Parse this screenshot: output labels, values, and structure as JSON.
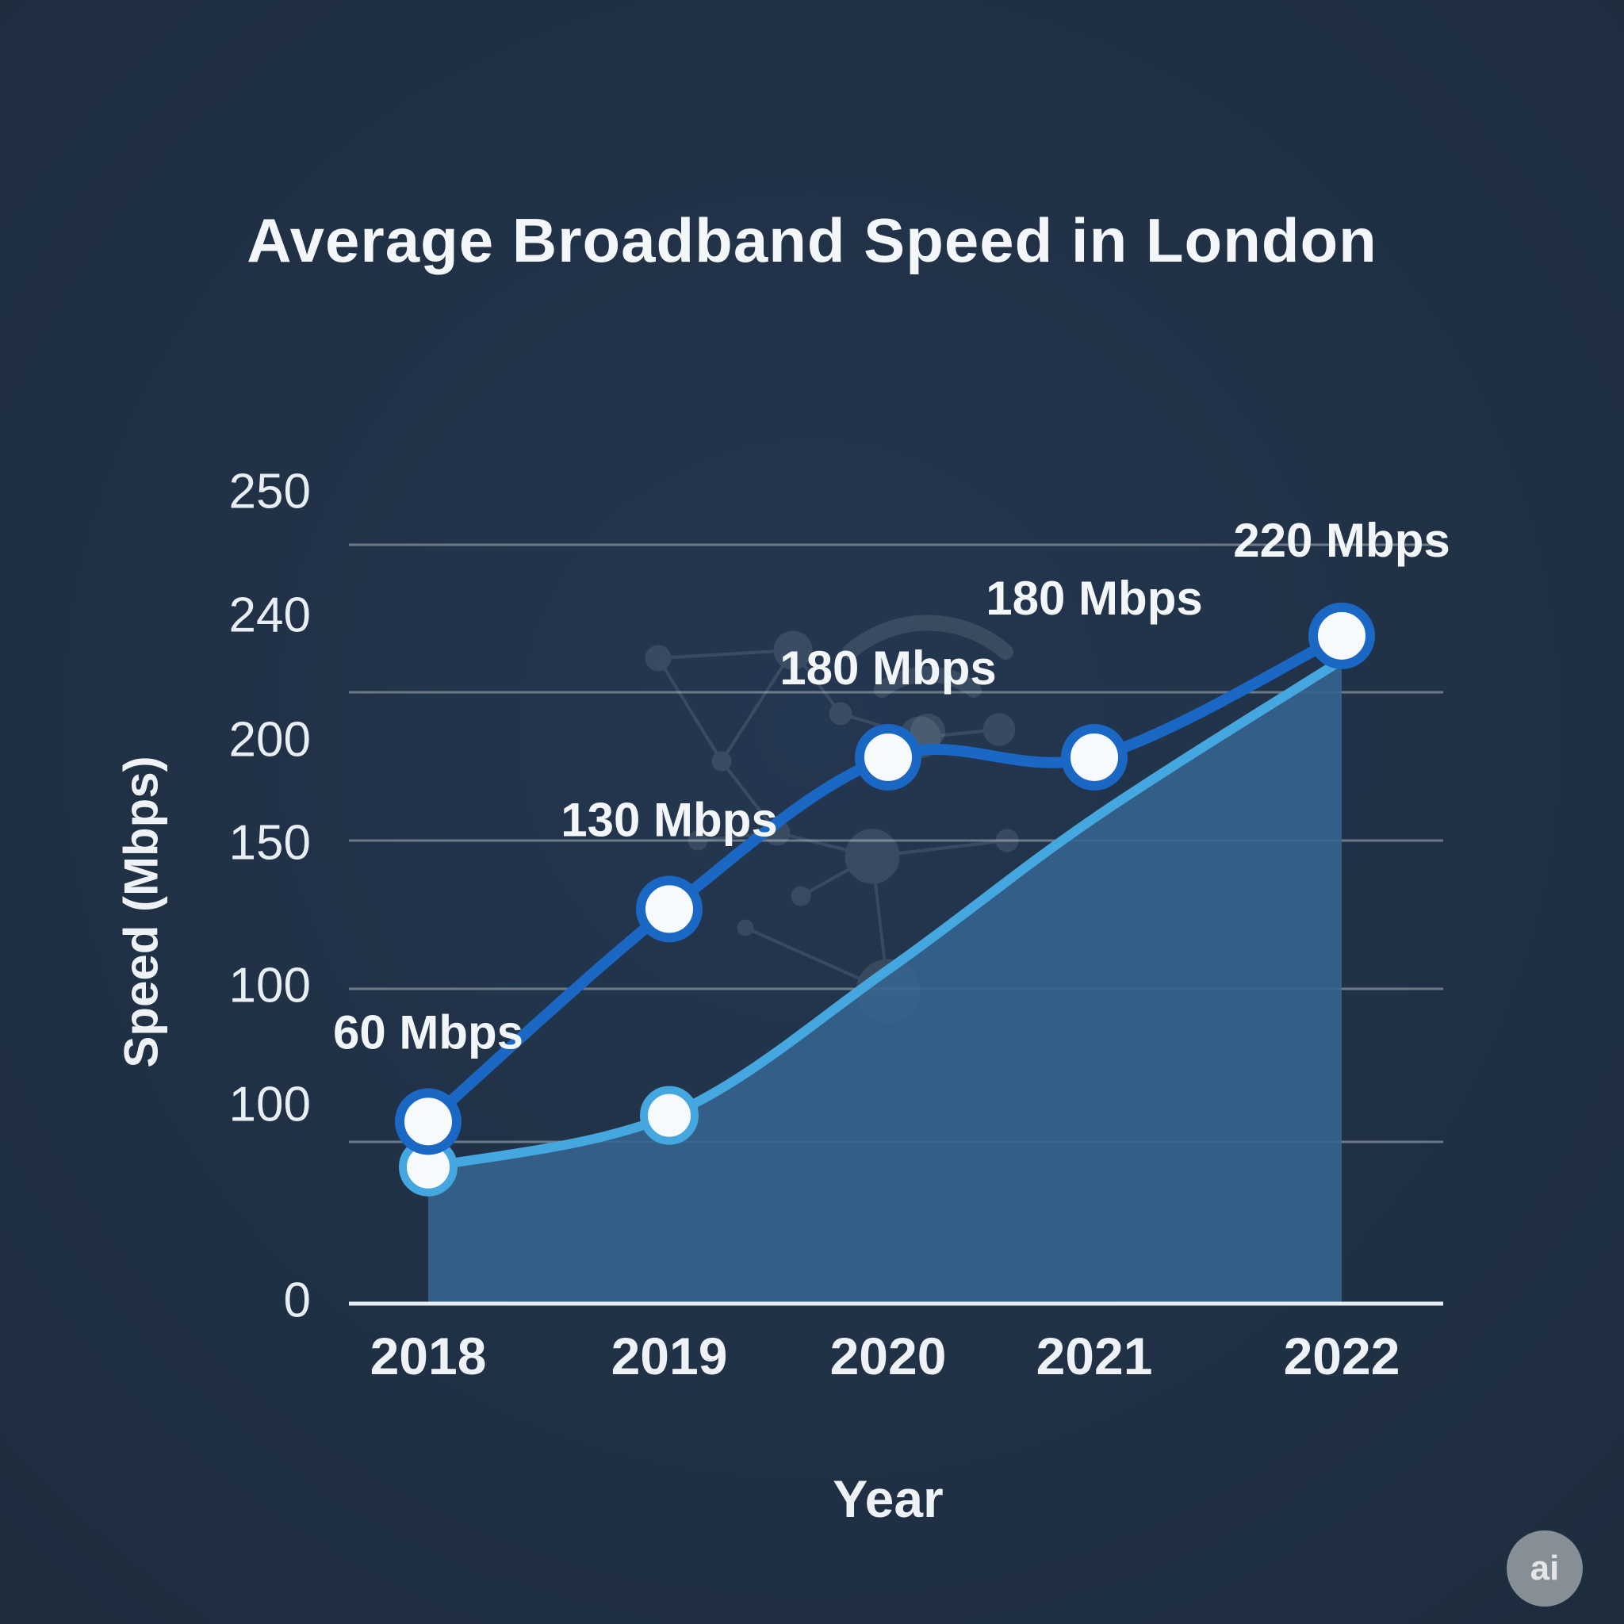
{
  "badge": {
    "label": "ai"
  },
  "decorative_icons": [
    "wifi-icon",
    "network-graph"
  ],
  "colors": {
    "background": "#1d2b3b",
    "line_primary": "#1a67c4",
    "line_secondary": "#45a7e0",
    "area_fill": "#35648f",
    "text": "#f2f5f8",
    "gridline": "#e6edf3"
  },
  "chart_data": {
    "type": "line",
    "title": "Average Broadband Speed in London",
    "xlabel": "Year",
    "ylabel": "Speed (Mbps)",
    "categories": [
      "2018",
      "2019",
      "2020",
      "2021",
      "2022"
    ],
    "ytick_labels": [
      "250",
      "240",
      "200",
      "150",
      "100",
      "100",
      "0"
    ],
    "ylim": [
      0,
      250
    ],
    "grid": true,
    "legend": "none",
    "series": [
      {
        "name": "broadband-speed",
        "color": "#1a67c4",
        "values": [
          60,
          130,
          180,
          180,
          220
        ],
        "markers": "all",
        "point_labels": [
          "60 Mbps",
          "130 Mbps",
          "180 Mbps",
          "180 Mbps",
          "220 Mbps"
        ]
      },
      {
        "name": "trend-area",
        "color": "#45a7e0",
        "fill": "#35648f",
        "values": [
          45,
          62,
          110,
          160,
          212
        ],
        "markers": "first-two",
        "point_labels": []
      }
    ]
  }
}
